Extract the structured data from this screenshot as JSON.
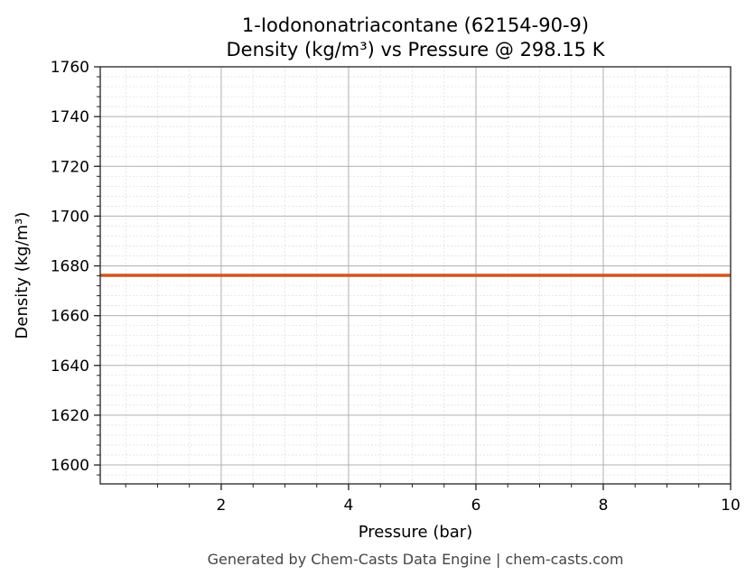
{
  "chart_data": {
    "type": "line",
    "title": "1-Iodononatriacontane (62154-90-9)",
    "subtitle": "Density (kg/m³) vs Pressure @ 298.15 K",
    "xlabel": "Pressure (bar)",
    "ylabel": "Density (kg/m³)",
    "xlim": [
      0.1,
      10
    ],
    "ylim": [
      1592.4,
      1760
    ],
    "xticks": [
      2,
      4,
      6,
      8,
      10
    ],
    "yticks": [
      1600,
      1620,
      1640,
      1660,
      1680,
      1700,
      1720,
      1740,
      1760
    ],
    "x_minor_step": 0.5,
    "y_minor_step": 4,
    "grid": true,
    "series": [
      {
        "x": [
          0.1,
          10
        ],
        "y": [
          1676.2,
          1676.2
        ],
        "color": "#d4541c"
      }
    ]
  },
  "footer": "Generated by Chem-Casts Data Engine | chem-casts.com"
}
